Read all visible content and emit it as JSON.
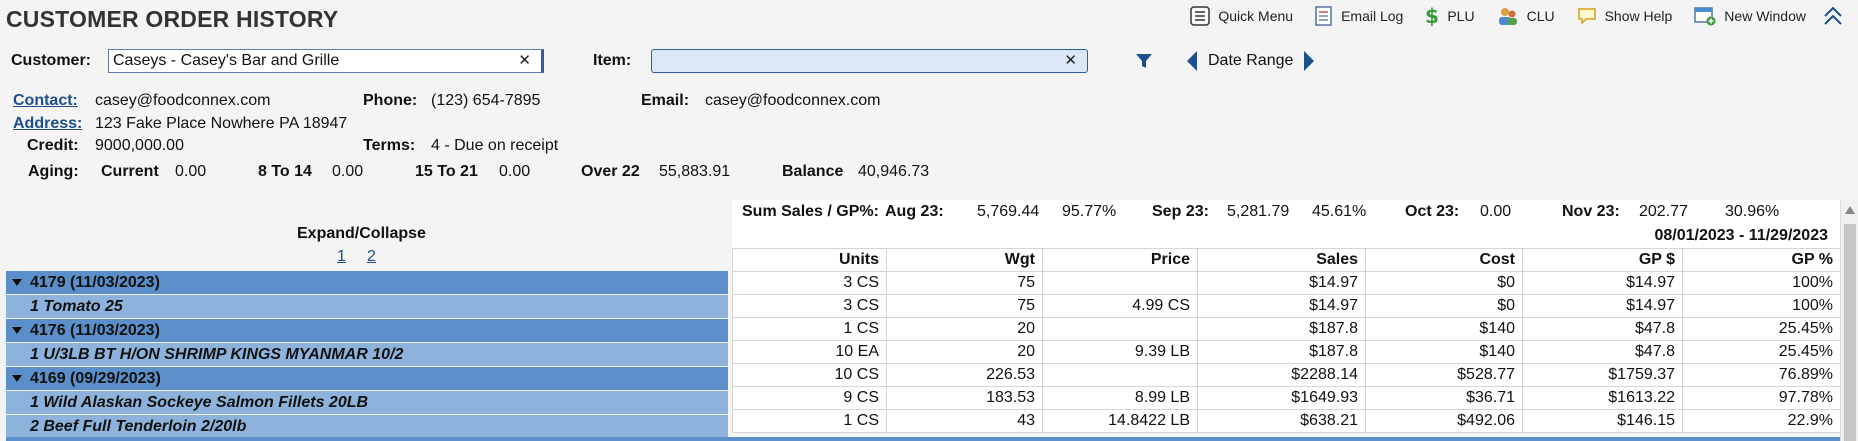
{
  "title": "CUSTOMER ORDER HISTORY",
  "toolbar": {
    "quick_menu": "Quick Menu",
    "email_log": "Email Log",
    "plu": "PLU",
    "clu": "CLU",
    "show_help": "Show Help",
    "new_window": "New Window"
  },
  "filters": {
    "customer_label": "Customer:",
    "customer_value": "Caseys - Casey's Bar and Grille",
    "item_label": "Item:",
    "item_value": "",
    "date_range_label": "Date Range"
  },
  "info": {
    "contact_label": "Contact:",
    "contact_value": "casey@foodconnex.com",
    "phone_label": "Phone:",
    "phone_value": "(123) 654-7895",
    "email_label": "Email:",
    "email_value": "casey@foodconnex.com",
    "address_label": "Address:",
    "address_value": "123 Fake Place Nowhere PA 18947",
    "credit_label": "Credit:",
    "credit_value": "9000,000.00",
    "terms_label": "Terms:",
    "terms_value": "4 - Due on receipt"
  },
  "aging": {
    "label": "Aging:",
    "current_label": "Current",
    "current_value": "0.00",
    "b8_label": "8 To 14",
    "b8_value": "0.00",
    "b15_label": "15 To 21",
    "b15_value": "0.00",
    "over_label": "Over 22",
    "over_value": "55,883.91",
    "balance_label": "Balance",
    "balance_value": "40,946.73"
  },
  "expand": {
    "label": "Expand/Collapse",
    "level1": "1",
    "level2": "2"
  },
  "summary": {
    "label": "Sum Sales / GP%:",
    "months": [
      {
        "month": "Aug 23:",
        "sales": "5,769.44",
        "gp": "95.77%"
      },
      {
        "month": "Sep 23:",
        "sales": "5,281.79",
        "gp": "45.61%"
      },
      {
        "month": "Oct 23:",
        "sales": "0.00",
        "gp": ""
      },
      {
        "month": "Nov 23:",
        "sales": "202.77",
        "gp": "30.96%"
      }
    ],
    "range": "08/01/2023 - 11/29/2023"
  },
  "columns": [
    "Units",
    "Wgt",
    "Price",
    "Sales",
    "Cost",
    "GP $",
    "GP %"
  ],
  "rows": [
    {
      "label": "4179 (11/03/2023)",
      "type": "order",
      "cells": [
        "3 CS",
        "75",
        "",
        "$14.97",
        "$0",
        "$14.97",
        "100%"
      ]
    },
    {
      "label": "1 Tomato 25",
      "type": "item",
      "cells": [
        "3 CS",
        "75",
        "4.99 CS",
        "$14.97",
        "$0",
        "$14.97",
        "100%"
      ]
    },
    {
      "label": "4176 (11/03/2023)",
      "type": "order",
      "cells": [
        "1 CS",
        "20",
        "",
        "$187.8",
        "$140",
        "$47.8",
        "25.45%"
      ]
    },
    {
      "label": "1 U/3LB BT H/ON SHRIMP KINGS MYANMAR 10/2",
      "type": "item",
      "cells": [
        "10 EA",
        "20",
        "9.39 LB",
        "$187.8",
        "$140",
        "$47.8",
        "25.45%"
      ]
    },
    {
      "label": "4169 (09/29/2023)",
      "type": "order",
      "cells": [
        "10 CS",
        "226.53",
        "",
        "$2288.14",
        "$528.77",
        "$1759.37",
        "76.89%"
      ]
    },
    {
      "label": "1 Wild Alaskan Sockeye Salmon Fillets 20LB",
      "type": "item",
      "cells": [
        "9 CS",
        "183.53",
        "8.99 LB",
        "$1649.93",
        "$36.71",
        "$1613.22",
        "97.78%"
      ]
    },
    {
      "label": "2 Beef Full Tenderloin 2/20lb",
      "type": "item",
      "cells": [
        "1 CS",
        "43",
        "14.8422 LB",
        "$638.21",
        "$492.06",
        "$146.15",
        "22.9%"
      ]
    }
  ],
  "colors": {
    "order_row": "#5b8fc9",
    "item_row": "#8db3dc",
    "accent": "#1f4e8c"
  },
  "icons": [
    "list-icon",
    "email-log-icon",
    "dollar-icon",
    "users-icon",
    "help-bubble-icon",
    "new-window-icon",
    "collapse-up-icon",
    "filter-icon",
    "prev-arrow-icon",
    "next-arrow-icon",
    "clear-icon",
    "expand-caret-icon"
  ]
}
